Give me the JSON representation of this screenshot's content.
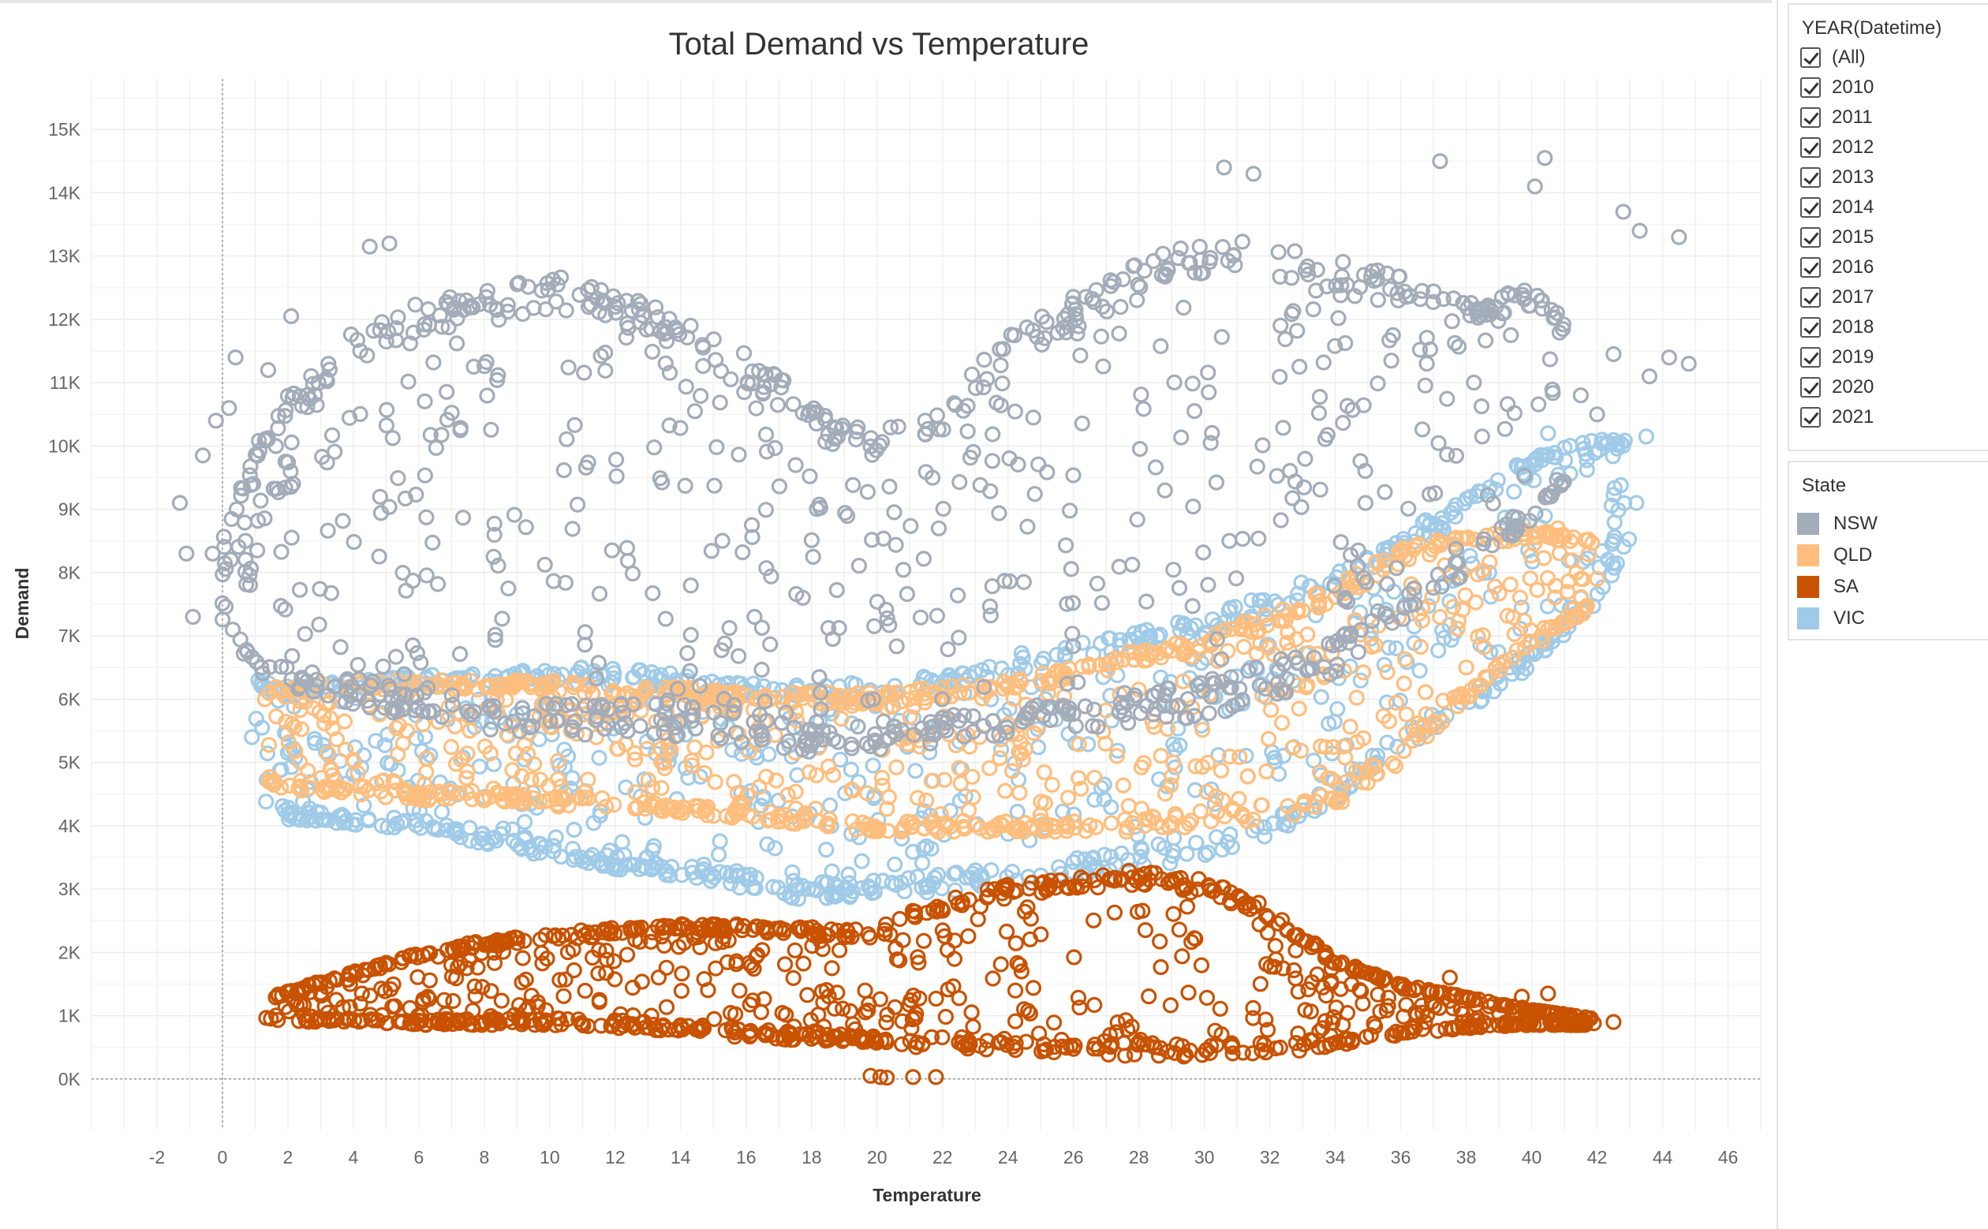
{
  "chart_data": {
    "type": "scatter",
    "title": "Total Demand vs Temperature",
    "xlabel": "Temperature",
    "ylabel": "Demand",
    "xlim": [
      -4,
      47
    ],
    "ylim": [
      -800,
      15800
    ],
    "x_ticks": [
      -2,
      0,
      2,
      4,
      6,
      8,
      10,
      12,
      14,
      16,
      18,
      20,
      22,
      24,
      26,
      28,
      30,
      32,
      34,
      36,
      38,
      40,
      42,
      44,
      46
    ],
    "x_tick_labels": [
      "-2",
      "0",
      "2",
      "4",
      "6",
      "8",
      "10",
      "12",
      "14",
      "16",
      "18",
      "20",
      "22",
      "24",
      "26",
      "28",
      "30",
      "32",
      "34",
      "36",
      "38",
      "40",
      "42",
      "44",
      "46"
    ],
    "y_ticks": [
      0,
      1000,
      2000,
      3000,
      4000,
      5000,
      6000,
      7000,
      8000,
      9000,
      10000,
      11000,
      12000,
      13000,
      14000,
      15000
    ],
    "y_tick_labels": [
      "0K",
      "1K",
      "2K",
      "3K",
      "4K",
      "5K",
      "6K",
      "7K",
      "8K",
      "9K",
      "10K",
      "11K",
      "12K",
      "13K",
      "14K",
      "15K"
    ],
    "grid": true,
    "marker": "hollow-circle",
    "legend_position": "right",
    "series": [
      {
        "name": "VIC",
        "color": "#a0cbe8",
        "bands": [
          [
            1,
            4500,
            6300
          ],
          [
            2,
            4100,
            6200
          ],
          [
            4,
            4000,
            6300
          ],
          [
            6,
            3950,
            6400
          ],
          [
            8,
            3700,
            6400
          ],
          [
            10,
            3500,
            6500
          ],
          [
            12,
            3300,
            6500
          ],
          [
            14,
            3200,
            6400
          ],
          [
            16,
            3000,
            6300
          ],
          [
            18,
            2800,
            6200
          ],
          [
            20,
            2900,
            6300
          ],
          [
            22,
            2950,
            6500
          ],
          [
            24,
            3100,
            6700
          ],
          [
            26,
            3200,
            6900
          ],
          [
            28,
            3300,
            7100
          ],
          [
            30,
            3500,
            7300
          ],
          [
            32,
            3800,
            7700
          ],
          [
            34,
            4400,
            8000
          ],
          [
            36,
            5200,
            8600
          ],
          [
            38,
            5800,
            9200
          ],
          [
            40,
            6500,
            9900
          ],
          [
            42,
            7500,
            10100
          ],
          [
            43,
            8500,
            10100
          ]
        ],
        "outliers": [
          [
            0.9,
            5400
          ],
          [
            1.1,
            6300
          ],
          [
            34.5,
            4900
          ],
          [
            41.5,
            7600
          ],
          [
            42.5,
            8500
          ],
          [
            43.2,
            9100
          ],
          [
            43.5,
            10150
          ],
          [
            40.5,
            10200
          ]
        ]
      },
      {
        "name": "QLD",
        "color": "#ffbe7d",
        "bands": [
          [
            1.4,
            4700,
            6200
          ],
          [
            2,
            4500,
            6200
          ],
          [
            4,
            4500,
            6300
          ],
          [
            6,
            4400,
            6300
          ],
          [
            8,
            4400,
            6300
          ],
          [
            10,
            4300,
            6300
          ],
          [
            12,
            4300,
            6200
          ],
          [
            14,
            4200,
            6200
          ],
          [
            16,
            4100,
            6100
          ],
          [
            18,
            4000,
            6100
          ],
          [
            20,
            3900,
            6100
          ],
          [
            22,
            3900,
            6200
          ],
          [
            24,
            3900,
            6300
          ],
          [
            26,
            3900,
            6500
          ],
          [
            28,
            3900,
            6800
          ],
          [
            30,
            4000,
            7000
          ],
          [
            32,
            4100,
            7400
          ],
          [
            34,
            4300,
            7800
          ],
          [
            36,
            5000,
            8400
          ],
          [
            38,
            6000,
            8600
          ],
          [
            40,
            6800,
            8700
          ],
          [
            42,
            7500,
            8500
          ]
        ],
        "outliers": [
          [
            1.3,
            6000
          ],
          [
            38,
            6500
          ],
          [
            40.5,
            7100
          ],
          [
            41.5,
            7900
          ],
          [
            42,
            7900
          ],
          [
            40.8,
            8700
          ]
        ]
      },
      {
        "name": "NSW",
        "color": "#a3acb9",
        "bands": [
          [
            0,
            7200,
            8500
          ],
          [
            1,
            6400,
            10000
          ],
          [
            2,
            6200,
            10800
          ],
          [
            4,
            5900,
            11800
          ],
          [
            6,
            5700,
            12300
          ],
          [
            8,
            5500,
            12500
          ],
          [
            10,
            5400,
            12700
          ],
          [
            12,
            5400,
            12500
          ],
          [
            14,
            5400,
            12000
          ],
          [
            16,
            5300,
            11500
          ],
          [
            18,
            5150,
            10700
          ],
          [
            20,
            5200,
            10200
          ],
          [
            22,
            5300,
            10700
          ],
          [
            24,
            5400,
            11800
          ],
          [
            26,
            5500,
            12400
          ],
          [
            28,
            5600,
            12900
          ],
          [
            30,
            5700,
            13300
          ],
          [
            32,
            6000,
            13200
          ],
          [
            34,
            6400,
            13000
          ],
          [
            36,
            7200,
            12700
          ],
          [
            38,
            8000,
            12300
          ],
          [
            40,
            8800,
            12500
          ],
          [
            41,
            9400,
            12000
          ]
        ],
        "outliers": [
          [
            -1.3,
            9100
          ],
          [
            -1.1,
            8300
          ],
          [
            -0.9,
            7300
          ],
          [
            -0.6,
            9850
          ],
          [
            -0.3,
            8300
          ],
          [
            -0.2,
            10400
          ],
          [
            0.2,
            10600
          ],
          [
            0.4,
            11400
          ],
          [
            1.4,
            11200
          ],
          [
            2.1,
            12050
          ],
          [
            4.5,
            13150
          ],
          [
            5.1,
            13200
          ],
          [
            30.6,
            14400
          ],
          [
            31.5,
            14300
          ],
          [
            37.2,
            14500
          ],
          [
            40.4,
            14550
          ],
          [
            40.1,
            14100
          ],
          [
            42.8,
            13700
          ],
          [
            43.3,
            13400
          ],
          [
            44.5,
            13300
          ],
          [
            44.2,
            11400
          ],
          [
            44.8,
            11300
          ],
          [
            42.5,
            11450
          ],
          [
            42.0,
            10500
          ],
          [
            41.5,
            10800
          ],
          [
            43.6,
            11100
          ]
        ]
      },
      {
        "name": "SA",
        "color": "#c85200",
        "bands": [
          [
            1.3,
            950,
            1250
          ],
          [
            2,
            900,
            1400
          ],
          [
            4,
            900,
            1700
          ],
          [
            6,
            850,
            2000
          ],
          [
            8,
            850,
            2200
          ],
          [
            10,
            850,
            2300
          ],
          [
            12,
            800,
            2400
          ],
          [
            14,
            750,
            2450
          ],
          [
            16,
            650,
            2450
          ],
          [
            18,
            600,
            2400
          ],
          [
            20,
            550,
            2350
          ],
          [
            21,
            500,
            2700
          ],
          [
            24,
            450,
            3100
          ],
          [
            26,
            400,
            3200
          ],
          [
            28,
            350,
            3300
          ],
          [
            30,
            350,
            3200
          ],
          [
            32,
            400,
            2700
          ],
          [
            34,
            500,
            1900
          ],
          [
            36,
            700,
            1500
          ],
          [
            38,
            800,
            1300
          ],
          [
            40,
            850,
            1100
          ],
          [
            42,
            850,
            950
          ]
        ],
        "outliers": [
          [
            19.8,
            50
          ],
          [
            20.1,
            30
          ],
          [
            20.3,
            20
          ],
          [
            21.1,
            30
          ],
          [
            21.8,
            30
          ],
          [
            42.5,
            900
          ],
          [
            41.9,
            880
          ],
          [
            41.2,
            850
          ],
          [
            40.5,
            1350
          ],
          [
            37.5,
            1600
          ],
          [
            39.7,
            1300
          ]
        ]
      }
    ]
  },
  "filters": {
    "year": {
      "title": "YEAR(Datetime)",
      "items": [
        "(All)",
        "2010",
        "2011",
        "2012",
        "2013",
        "2014",
        "2015",
        "2016",
        "2017",
        "2018",
        "2019",
        "2020",
        "2021"
      ]
    }
  },
  "legend": {
    "title": "State",
    "items": [
      {
        "label": "NSW",
        "color": "#a3acb9"
      },
      {
        "label": "QLD",
        "color": "#ffbe7d"
      },
      {
        "label": "SA",
        "color": "#c85200"
      },
      {
        "label": "VIC",
        "color": "#a0cbe8"
      }
    ]
  }
}
